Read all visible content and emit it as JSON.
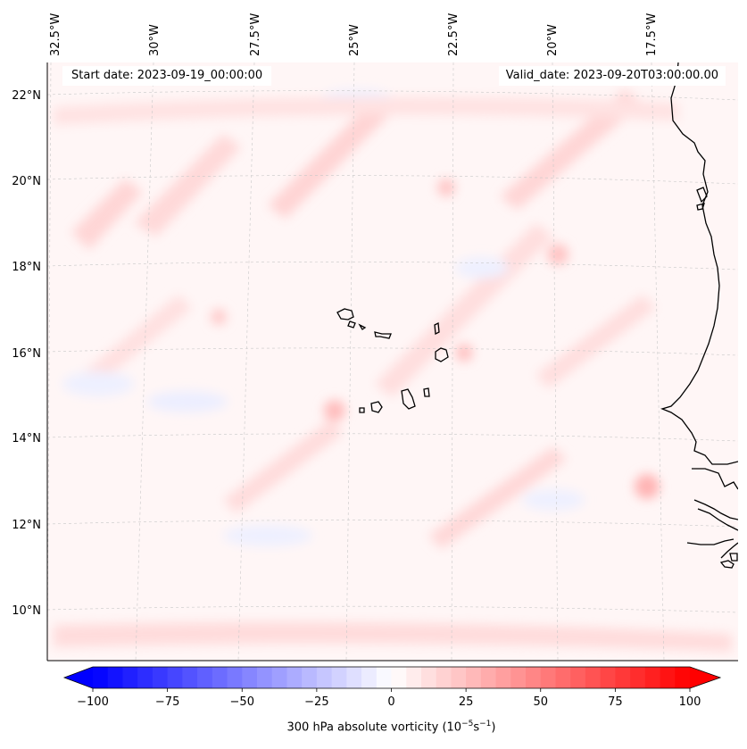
{
  "header": {
    "start_date": "Start date: 2023-09-19_00:00:00",
    "valid_date": "Valid_date: 2023-09-20T03:00:00.00"
  },
  "map": {
    "lon_labels": [
      "32.5°W",
      "30°W",
      "27.5°W",
      "25°W",
      "22.5°W",
      "20°W",
      "17.5°W"
    ],
    "lat_labels": [
      "22°N",
      "20°N",
      "18°N",
      "16°N",
      "14°N",
      "12°N",
      "10°N"
    ],
    "field": "300 hPa absolute vorticity",
    "gridlines": true,
    "projection_note": "rotated"
  },
  "colorbar": {
    "label_main": "300 hPa absolute vorticity (10",
    "label_exp1": "−5",
    "label_mid": "s",
    "label_exp2": "−1",
    "label_end": ")",
    "ticks": [
      "−100",
      "−75",
      "−50",
      "−25",
      "0",
      "25",
      "50",
      "75",
      "100"
    ],
    "vmin": -100,
    "vmax": 100,
    "levels": 40,
    "colormap": "bwr",
    "extend": "both"
  },
  "colors": {
    "negative": "#0000ff",
    "zero": "#ffffff",
    "positive": "#ff0000",
    "coastline": "#000000"
  }
}
